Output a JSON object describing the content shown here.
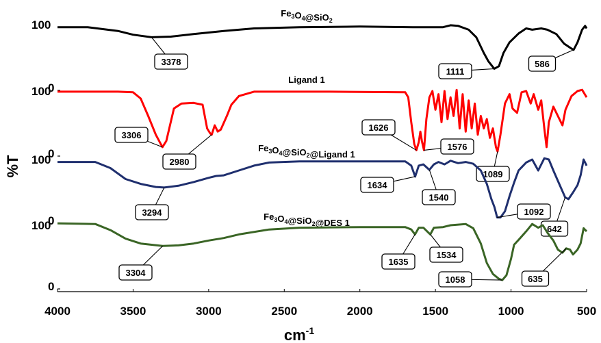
{
  "chart_data": {
    "type": "line",
    "xlabel": "cm",
    "xlabel_superscript": "-1",
    "ylabel": "%T",
    "x_ticks": [
      4000,
      3500,
      3000,
      2500,
      2000,
      1500,
      1000,
      500
    ],
    "x_range": [
      4000,
      500
    ],
    "x_reversed": true,
    "grid": false,
    "series": [
      {
        "name": "Fe3O4@SiO2",
        "title_parts": [
          [
            "Fe",
            ""
          ],
          [
            "3",
            "sub"
          ],
          [
            "O",
            ""
          ],
          [
            "4",
            "sub"
          ],
          [
            "@SiO",
            ""
          ],
          [
            "2",
            "sub"
          ]
        ],
        "color": "#000000",
        "y_tick_labels": [
          "100",
          "0"
        ],
        "points": [
          [
            4000,
            96
          ],
          [
            3800,
            96
          ],
          [
            3600,
            90
          ],
          [
            3500,
            84
          ],
          [
            3378,
            80
          ],
          [
            3250,
            81
          ],
          [
            3100,
            85
          ],
          [
            2900,
            90
          ],
          [
            2700,
            94
          ],
          [
            2400,
            96
          ],
          [
            2000,
            97
          ],
          [
            1650,
            96
          ],
          [
            1450,
            96
          ],
          [
            1400,
            99
          ],
          [
            1350,
            98
          ],
          [
            1280,
            92
          ],
          [
            1230,
            80
          ],
          [
            1180,
            55
          ],
          [
            1150,
            42
          ],
          [
            1111,
            30
          ],
          [
            1080,
            34
          ],
          [
            1050,
            55
          ],
          [
            1010,
            72
          ],
          [
            950,
            86
          ],
          [
            900,
            94
          ],
          [
            860,
            92
          ],
          [
            800,
            94
          ],
          [
            760,
            92
          ],
          [
            700,
            85
          ],
          [
            650,
            70
          ],
          [
            600,
            62
          ],
          [
            586,
            60
          ],
          [
            560,
            72
          ],
          [
            530,
            92
          ],
          [
            510,
            98
          ],
          [
            500,
            94
          ]
        ],
        "annotations": [
          {
            "label": "3378",
            "x": 3378
          },
          {
            "label": "1111",
            "x": 1111
          },
          {
            "label": "586",
            "x": 586
          }
        ]
      },
      {
        "name": "Ligand 1",
        "title_parts": [
          [
            "Ligand 1",
            ""
          ]
        ],
        "color": "#ff0000",
        "y_tick_labels": [
          "100",
          "0"
        ],
        "points": [
          [
            4000,
            99
          ],
          [
            3600,
            99
          ],
          [
            3500,
            98
          ],
          [
            3450,
            88
          ],
          [
            3400,
            60
          ],
          [
            3350,
            30
          ],
          [
            3306,
            10
          ],
          [
            3280,
            20
          ],
          [
            3230,
            72
          ],
          [
            3180,
            80
          ],
          [
            3100,
            81
          ],
          [
            3040,
            78
          ],
          [
            3010,
            40
          ],
          [
            2990,
            32
          ],
          [
            2980,
            30
          ],
          [
            2960,
            45
          ],
          [
            2940,
            35
          ],
          [
            2920,
            38
          ],
          [
            2880,
            60
          ],
          [
            2850,
            78
          ],
          [
            2800,
            92
          ],
          [
            2700,
            99
          ],
          [
            2200,
            99
          ],
          [
            1700,
            98
          ],
          [
            1680,
            90
          ],
          [
            1660,
            50
          ],
          [
            1640,
            15
          ],
          [
            1626,
            5
          ],
          [
            1610,
            18
          ],
          [
            1600,
            35
          ],
          [
            1590,
            20
          ],
          [
            1576,
            5
          ],
          [
            1560,
            55
          ],
          [
            1540,
            90
          ],
          [
            1520,
            100
          ],
          [
            1500,
            70
          ],
          [
            1480,
            95
          ],
          [
            1460,
            50
          ],
          [
            1440,
            100
          ],
          [
            1420,
            55
          ],
          [
            1400,
            90
          ],
          [
            1380,
            60
          ],
          [
            1360,
            102
          ],
          [
            1340,
            40
          ],
          [
            1320,
            95
          ],
          [
            1300,
            35
          ],
          [
            1280,
            85
          ],
          [
            1260,
            40
          ],
          [
            1240,
            80
          ],
          [
            1220,
            30
          ],
          [
            1200,
            60
          ],
          [
            1180,
            40
          ],
          [
            1160,
            55
          ],
          [
            1140,
            25
          ],
          [
            1120,
            40
          ],
          [
            1100,
            10
          ],
          [
            1089,
            3
          ],
          [
            1070,
            30
          ],
          [
            1040,
            80
          ],
          [
            1010,
            95
          ],
          [
            990,
            72
          ],
          [
            960,
            65
          ],
          [
            930,
            98
          ],
          [
            900,
            100
          ],
          [
            870,
            80
          ],
          [
            850,
            95
          ],
          [
            820,
            70
          ],
          [
            800,
            85
          ],
          [
            780,
            40
          ],
          [
            765,
            10
          ],
          [
            750,
            50
          ],
          [
            720,
            75
          ],
          [
            690,
            60
          ],
          [
            660,
            45
          ],
          [
            640,
            70
          ],
          [
            600,
            92
          ],
          [
            560,
            100
          ],
          [
            530,
            102
          ],
          [
            500,
            90
          ]
        ],
        "annotations": [
          {
            "label": "3306",
            "x": 3306
          },
          {
            "label": "2980",
            "x": 2980
          },
          {
            "label": "1626",
            "x": 1626
          },
          {
            "label": "1576",
            "x": 1576
          },
          {
            "label": "1089",
            "x": 1089
          }
        ]
      },
      {
        "name": "Fe3O4@SiO2@Ligand 1",
        "title_parts": [
          [
            "Fe",
            ""
          ],
          [
            "3",
            "sub"
          ],
          [
            "O",
            ""
          ],
          [
            "4",
            "sub"
          ],
          [
            "@SiO",
            ""
          ],
          [
            "2",
            "sub"
          ],
          [
            "@Ligand 1",
            ""
          ]
        ],
        "color": "#1f2f6e",
        "y_tick_labels": [
          "100",
          "0"
        ],
        "points": [
          [
            4000,
            96
          ],
          [
            3750,
            96
          ],
          [
            3650,
            86
          ],
          [
            3550,
            68
          ],
          [
            3450,
            60
          ],
          [
            3350,
            55
          ],
          [
            3294,
            54
          ],
          [
            3200,
            57
          ],
          [
            3100,
            63
          ],
          [
            3000,
            70
          ],
          [
            2950,
            73
          ],
          [
            2900,
            74
          ],
          [
            2800,
            82
          ],
          [
            2700,
            90
          ],
          [
            2600,
            95
          ],
          [
            2400,
            97
          ],
          [
            2000,
            97
          ],
          [
            1700,
            97
          ],
          [
            1660,
            90
          ],
          [
            1634,
            72
          ],
          [
            1610,
            90
          ],
          [
            1580,
            92
          ],
          [
            1540,
            83
          ],
          [
            1510,
            92
          ],
          [
            1480,
            96
          ],
          [
            1440,
            92
          ],
          [
            1400,
            98
          ],
          [
            1350,
            94
          ],
          [
            1300,
            96
          ],
          [
            1250,
            93
          ],
          [
            1200,
            82
          ],
          [
            1160,
            60
          ],
          [
            1130,
            35
          ],
          [
            1110,
            22
          ],
          [
            1092,
            5
          ],
          [
            1070,
            5
          ],
          [
            1040,
            15
          ],
          [
            1010,
            40
          ],
          [
            980,
            62
          ],
          [
            950,
            82
          ],
          [
            900,
            95
          ],
          [
            860,
            100
          ],
          [
            820,
            82
          ],
          [
            780,
            102
          ],
          [
            750,
            100
          ],
          [
            720,
            82
          ],
          [
            690,
            65
          ],
          [
            660,
            48
          ],
          [
            642,
            38
          ],
          [
            620,
            35
          ],
          [
            590,
            46
          ],
          [
            560,
            58
          ],
          [
            540,
            74
          ],
          [
            520,
            100
          ],
          [
            500,
            90
          ]
        ],
        "annotations": [
          {
            "label": "1634",
            "x": 1634
          },
          {
            "label": "3294",
            "x": 3294
          },
          {
            "label": "1540",
            "x": 1540
          },
          {
            "label": "1092",
            "x": 1092
          },
          {
            "label": "642",
            "x": 642
          }
        ]
      },
      {
        "name": "Fe3O4@SiO2@DES 1",
        "title_parts": [
          [
            "Fe",
            ""
          ],
          [
            "3",
            "sub"
          ],
          [
            "O",
            ""
          ],
          [
            "4",
            "sub"
          ],
          [
            "@SiO",
            ""
          ],
          [
            "2",
            "sub"
          ],
          [
            "@DES 1",
            ""
          ]
        ],
        "color": "#3a6525",
        "y_tick_labels": [
          "100",
          "0"
        ],
        "points": [
          [
            4000,
            103
          ],
          [
            3750,
            102
          ],
          [
            3650,
            92
          ],
          [
            3550,
            78
          ],
          [
            3450,
            70
          ],
          [
            3304,
            66
          ],
          [
            3200,
            67
          ],
          [
            3100,
            70
          ],
          [
            3000,
            75
          ],
          [
            2900,
            79
          ],
          [
            2800,
            85
          ],
          [
            2600,
            93
          ],
          [
            2400,
            96
          ],
          [
            2000,
            97
          ],
          [
            1700,
            97
          ],
          [
            1660,
            93
          ],
          [
            1635,
            85
          ],
          [
            1610,
            96
          ],
          [
            1580,
            96
          ],
          [
            1534,
            85
          ],
          [
            1510,
            96
          ],
          [
            1450,
            97
          ],
          [
            1400,
            100
          ],
          [
            1300,
            102
          ],
          [
            1250,
            95
          ],
          [
            1200,
            70
          ],
          [
            1160,
            38
          ],
          [
            1120,
            20
          ],
          [
            1080,
            12
          ],
          [
            1058,
            10
          ],
          [
            1030,
            18
          ],
          [
            1000,
            45
          ],
          [
            980,
            68
          ],
          [
            950,
            76
          ],
          [
            900,
            90
          ],
          [
            860,
            102
          ],
          [
            820,
            96
          ],
          [
            790,
            100
          ],
          [
            760,
            88
          ],
          [
            720,
            75
          ],
          [
            690,
            60
          ],
          [
            660,
            55
          ],
          [
            635,
            62
          ],
          [
            610,
            60
          ],
          [
            590,
            52
          ],
          [
            560,
            60
          ],
          [
            540,
            70
          ],
          [
            520,
            95
          ],
          [
            500,
            90
          ]
        ],
        "annotations": [
          {
            "label": "1635",
            "x": 1635
          },
          {
            "label": "1534",
            "x": 1534
          },
          {
            "label": "1058",
            "x": 1058
          },
          {
            "label": "635",
            "x": 635
          },
          {
            "label": "3304",
            "x": 3304
          }
        ]
      }
    ]
  }
}
